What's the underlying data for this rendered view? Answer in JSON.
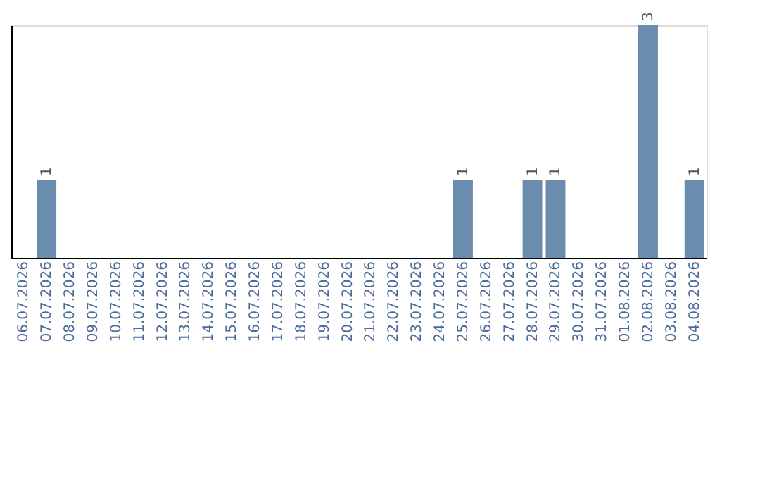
{
  "chart_data": {
    "type": "bar",
    "categories": [
      "06.07.2026",
      "07.07.2026",
      "08.07.2026",
      "09.07.2026",
      "10.07.2026",
      "11.07.2026",
      "12.07.2026",
      "13.07.2026",
      "14.07.2026",
      "15.07.2026",
      "16.07.2026",
      "17.07.2026",
      "18.07.2026",
      "19.07.2026",
      "20.07.2026",
      "21.07.2026",
      "22.07.2026",
      "23.07.2026",
      "24.07.2026",
      "25.07.2026",
      "26.07.2026",
      "27.07.2026",
      "28.07.2026",
      "29.07.2026",
      "30.07.2026",
      "31.07.2026",
      "01.08.2026",
      "02.08.2026",
      "03.08.2026",
      "04.08.2026"
    ],
    "values": [
      0,
      1,
      0,
      0,
      0,
      0,
      0,
      0,
      0,
      0,
      0,
      0,
      0,
      0,
      0,
      0,
      0,
      0,
      0,
      1,
      0,
      0,
      1,
      1,
      0,
      0,
      0,
      3,
      0,
      1
    ],
    "value_labels": [
      null,
      "1",
      null,
      null,
      null,
      null,
      null,
      null,
      null,
      null,
      null,
      null,
      null,
      null,
      null,
      null,
      null,
      null,
      null,
      "1",
      null,
      null,
      "1",
      "1",
      null,
      null,
      null,
      "3",
      null,
      "1"
    ],
    "color": "#6a8caf",
    "grid": false,
    "tick_labels": "x"
  }
}
